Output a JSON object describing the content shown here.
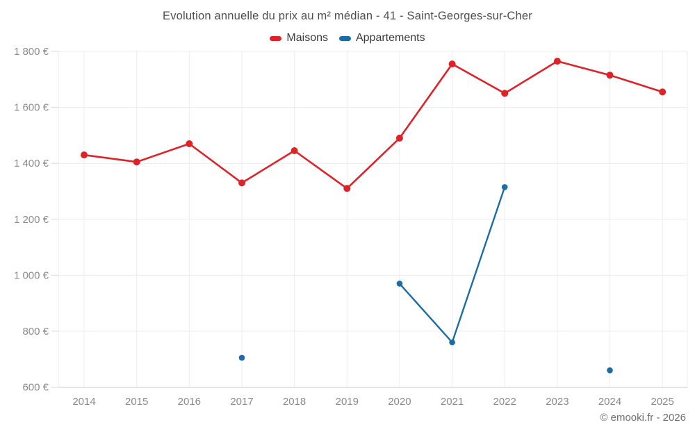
{
  "chart_data": {
    "type": "line",
    "title": "Evolution annuelle du prix au m² médian - 41 - Saint-Georges-sur-Cher",
    "categories": [
      "2014",
      "2015",
      "2016",
      "2017",
      "2018",
      "2019",
      "2020",
      "2021",
      "2022",
      "2023",
      "2024",
      "2025"
    ],
    "series": [
      {
        "name": "Maisons",
        "color": "#df2228",
        "values": [
          1430,
          1405,
          1470,
          1330,
          1445,
          1310,
          1490,
          1755,
          1650,
          1765,
          1715,
          1655
        ]
      },
      {
        "name": "Appartements",
        "color": "#1b6ca6",
        "values": [
          null,
          null,
          null,
          705,
          null,
          null,
          970,
          760,
          1315,
          null,
          660,
          null
        ]
      }
    ],
    "ylim": [
      600,
      1800
    ],
    "y_ticks": [
      {
        "value": 600,
        "label": "600 €"
      },
      {
        "value": 800,
        "label": "800 €"
      },
      {
        "value": 1000,
        "label": "1 000 €"
      },
      {
        "value": 1200,
        "label": "1 200 €"
      },
      {
        "value": 1400,
        "label": "1 400 €"
      },
      {
        "value": 1600,
        "label": "1 600 €"
      },
      {
        "value": 1800,
        "label": "1 800 €"
      }
    ],
    "grid": true,
    "legend_position": "top",
    "xlabel": "",
    "ylabel": ""
  },
  "footer": {
    "copyright": "© emooki.fr - 2026"
  }
}
